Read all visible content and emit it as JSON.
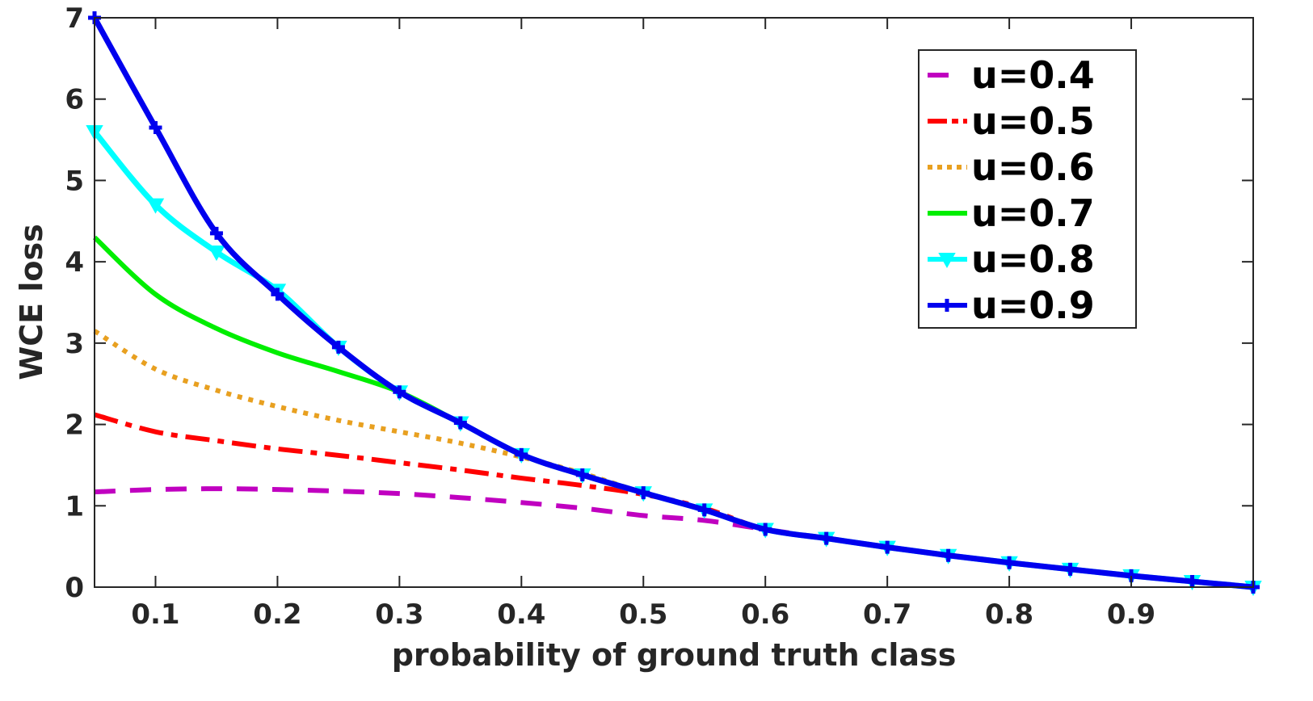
{
  "chart_data": {
    "type": "line",
    "xlabel": "probability of ground truth class",
    "ylabel": "WCE loss",
    "xlim": [
      0.05,
      1.0
    ],
    "ylim": [
      0,
      7
    ],
    "x_ticks": [
      0.1,
      0.2,
      0.3,
      0.4,
      0.5,
      0.6,
      0.7,
      0.8,
      0.9
    ],
    "x_tick_labels": [
      "0.1",
      "0.2",
      "0.3",
      "0.4",
      "0.5",
      "0.6",
      "0.7",
      "0.8",
      "0.9"
    ],
    "y_ticks": [
      0,
      1,
      2,
      3,
      4,
      5,
      6,
      7
    ],
    "y_tick_labels": [
      "0",
      "1",
      "2",
      "3",
      "4",
      "5",
      "6",
      "7"
    ],
    "grid": false,
    "legend_position": "top-right",
    "series": [
      {
        "name": "u=0.4",
        "color": "#c000c0",
        "style": "dashed",
        "marker": "none",
        "x": [
          0.05,
          0.1,
          0.15,
          0.2,
          0.25,
          0.3,
          0.35,
          0.4,
          0.45,
          0.5,
          0.55,
          0.6,
          0.65,
          0.7,
          0.75,
          0.8,
          0.85,
          0.9,
          0.95,
          1.0
        ],
        "y": [
          1.17,
          1.2,
          1.21,
          1.2,
          1.18,
          1.15,
          1.1,
          1.04,
          0.97,
          0.88,
          0.82,
          0.71,
          0.6,
          0.49,
          0.39,
          0.3,
          0.22,
          0.14,
          0.07,
          0.0
        ]
      },
      {
        "name": "u=0.5",
        "color": "#ff0000",
        "style": "dashdot",
        "marker": "none",
        "x": [
          0.05,
          0.1,
          0.15,
          0.2,
          0.25,
          0.3,
          0.35,
          0.4,
          0.45,
          0.5,
          0.55,
          0.6,
          0.65,
          0.7,
          0.75,
          0.8,
          0.85,
          0.9,
          0.95,
          1.0
        ],
        "y": [
          2.12,
          1.91,
          1.8,
          1.7,
          1.62,
          1.53,
          1.44,
          1.34,
          1.25,
          1.14,
          0.97,
          0.71,
          0.6,
          0.49,
          0.39,
          0.3,
          0.22,
          0.14,
          0.07,
          0.0
        ]
      },
      {
        "name": "u=0.6",
        "color": "#e8a020",
        "style": "dotted",
        "marker": "none",
        "x": [
          0.05,
          0.1,
          0.15,
          0.2,
          0.25,
          0.3,
          0.35,
          0.4,
          0.45,
          0.5,
          0.55,
          0.6,
          0.65,
          0.7,
          0.75,
          0.8,
          0.85,
          0.9,
          0.95,
          1.0
        ],
        "y": [
          3.15,
          2.68,
          2.42,
          2.22,
          2.05,
          1.91,
          1.77,
          1.6,
          1.4,
          1.16,
          0.95,
          0.71,
          0.6,
          0.49,
          0.39,
          0.3,
          0.22,
          0.14,
          0.07,
          0.0
        ]
      },
      {
        "name": "u=0.7",
        "color": "#00ee00",
        "style": "solid",
        "marker": "none",
        "x": [
          0.05,
          0.1,
          0.15,
          0.2,
          0.25,
          0.3,
          0.35,
          0.4,
          0.45,
          0.5,
          0.55,
          0.6,
          0.65,
          0.7,
          0.75,
          0.8,
          0.85,
          0.9,
          0.95,
          1.0
        ],
        "y": [
          4.3,
          3.6,
          3.18,
          2.88,
          2.65,
          2.4,
          2.02,
          1.63,
          1.38,
          1.16,
          0.95,
          0.71,
          0.6,
          0.49,
          0.39,
          0.3,
          0.22,
          0.14,
          0.07,
          0.0
        ]
      },
      {
        "name": "u=0.8",
        "color": "#00ffff",
        "style": "solid",
        "marker": "triangle-down",
        "x": [
          0.05,
          0.1,
          0.15,
          0.2,
          0.25,
          0.3,
          0.35,
          0.4,
          0.45,
          0.5,
          0.55,
          0.6,
          0.65,
          0.7,
          0.75,
          0.8,
          0.85,
          0.9,
          0.95,
          1.0
        ],
        "y": [
          5.6,
          4.7,
          4.12,
          3.65,
          2.95,
          2.4,
          2.02,
          1.63,
          1.38,
          1.16,
          0.95,
          0.71,
          0.6,
          0.49,
          0.39,
          0.3,
          0.22,
          0.14,
          0.07,
          0.0
        ]
      },
      {
        "name": "u=0.9",
        "color": "#0000ee",
        "style": "solid",
        "marker": "plus",
        "x": [
          0.05,
          0.1,
          0.15,
          0.2,
          0.25,
          0.3,
          0.35,
          0.4,
          0.45,
          0.5,
          0.55,
          0.6,
          0.65,
          0.7,
          0.75,
          0.8,
          0.85,
          0.9,
          0.95,
          1.0
        ],
        "y": [
          7.0,
          5.65,
          4.35,
          3.6,
          2.95,
          2.4,
          2.02,
          1.63,
          1.38,
          1.16,
          0.95,
          0.71,
          0.6,
          0.49,
          0.39,
          0.3,
          0.22,
          0.14,
          0.07,
          0.0
        ]
      }
    ]
  }
}
